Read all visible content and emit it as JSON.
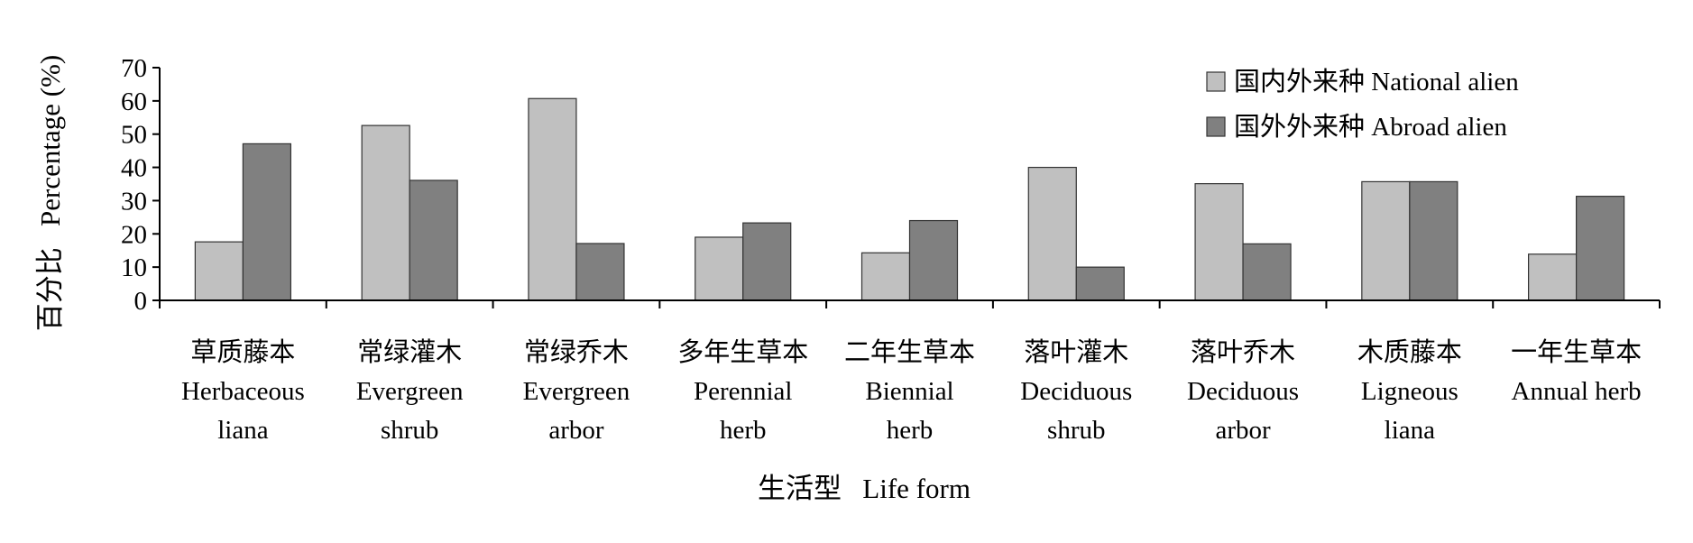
{
  "chart_data": {
    "type": "bar",
    "categories": [
      [
        "草质藤本",
        "Herbaceous",
        "liana"
      ],
      [
        "常绿灌木",
        "Evergreen",
        "shrub"
      ],
      [
        "常绿乔木",
        "Evergreen",
        "arbor"
      ],
      [
        "多年生草本",
        "Perennial",
        "herb"
      ],
      [
        "二年生草本",
        "Biennial",
        "herb"
      ],
      [
        "落叶灌木",
        "Deciduous",
        "shrub"
      ],
      [
        "落叶乔木",
        "Deciduous",
        "arbor"
      ],
      [
        "木质藤本",
        "Ligneous",
        "liana"
      ],
      [
        "一年生草本",
        "Annual herb"
      ]
    ],
    "series": [
      {
        "name": "国内外来种 National alien",
        "color": "#c0c0c0",
        "values": [
          17.6,
          52.6,
          60.7,
          19.0,
          14.3,
          40.0,
          35.1,
          35.7,
          13.9
        ]
      },
      {
        "name": "国外外来种 Abroad alien",
        "color": "#808080",
        "values": [
          47.1,
          36.1,
          17.1,
          23.3,
          24.0,
          10.0,
          17.0,
          35.7,
          31.3
        ]
      }
    ],
    "xlabel": "生活型   Life form",
    "ylabel": "百分比   Percentage (%)",
    "ylim": [
      0,
      70
    ],
    "yticks": [
      0,
      10,
      20,
      30,
      40,
      50,
      60,
      70
    ],
    "grid": false,
    "legend": "top-right"
  }
}
